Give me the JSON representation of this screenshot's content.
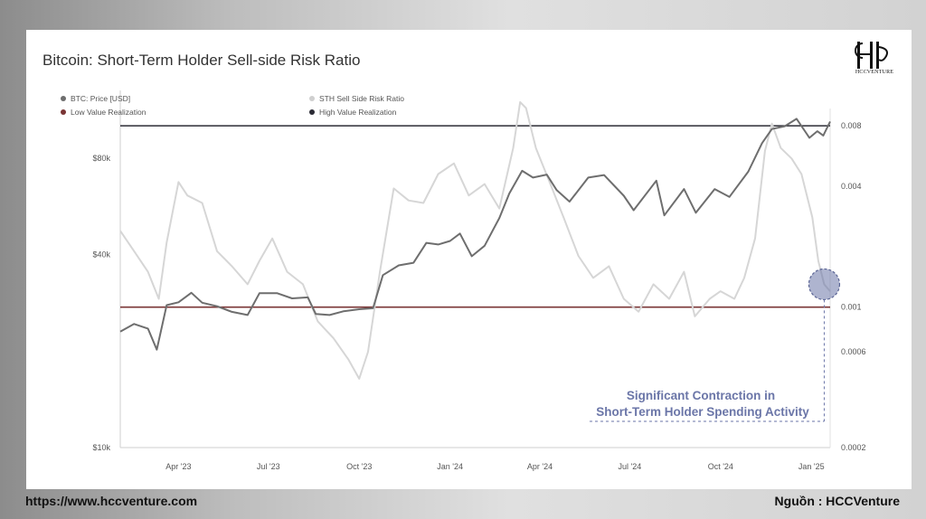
{
  "title": "Bitcoin: Short-Term Holder Sell-side Risk Ratio",
  "logo": {
    "text": "HCCVENTURE",
    "icon": "hcc-monogram-logo"
  },
  "footer": {
    "url": "https://www.hccventure.com",
    "source": "Nguồn : HCCVenture"
  },
  "colors": {
    "price": "#6e6e6e",
    "ratio": "#d6d6d6",
    "low_line": "#7a3535",
    "high_line": "#2b2b35",
    "annotation": "#6b76a8"
  },
  "chart_data": {
    "type": "line",
    "legend": [
      {
        "label": "BTC: Price [USD]",
        "color": "#6e6e6e"
      },
      {
        "label": "STH Sell Side Risk Ratio",
        "color": "#cfcfcf"
      },
      {
        "label": "Low Value Realization",
        "color": "#7a3535"
      },
      {
        "label": "High Value Realization",
        "color": "#2b2b35"
      }
    ],
    "x_ticks": [
      "Apr '23",
      "Jul '23",
      "Oct '23",
      "Jan '24",
      "Apr '24",
      "Jul '24",
      "Oct '24",
      "Jan '25"
    ],
    "x_range": [
      "2023-02-01",
      "2025-01-20"
    ],
    "y_left": {
      "scale": "log",
      "range": [
        10000,
        130000
      ],
      "ticks": [
        {
          "value": 10000,
          "label": "$10k"
        },
        {
          "value": 40000,
          "label": "$40k"
        },
        {
          "value": 80000,
          "label": "$80k"
        }
      ]
    },
    "y_right": {
      "scale": "log",
      "range": [
        0.0002,
        0.012
      ],
      "ticks": [
        {
          "value": 0.0002,
          "label": "0.0002"
        },
        {
          "value": 0.0006,
          "label": "0.0006"
        },
        {
          "value": 0.001,
          "label": "0.001"
        },
        {
          "value": 0.004,
          "label": "0.004"
        },
        {
          "value": 0.008,
          "label": "0.008"
        }
      ]
    },
    "low_value_realization": 0.001,
    "high_value_realization": 0.008,
    "series": [
      {
        "name": "BTC: Price [USD]",
        "axis": "left",
        "points": [
          [
            "2023-02-01",
            23000
          ],
          [
            "2023-02-15",
            24300
          ],
          [
            "2023-03-01",
            23500
          ],
          [
            "2023-03-10",
            20200
          ],
          [
            "2023-03-20",
            27800
          ],
          [
            "2023-04-01",
            28400
          ],
          [
            "2023-04-14",
            30400
          ],
          [
            "2023-04-25",
            28300
          ],
          [
            "2023-05-10",
            27600
          ],
          [
            "2023-05-25",
            26500
          ],
          [
            "2023-06-10",
            25900
          ],
          [
            "2023-06-22",
            30300
          ],
          [
            "2023-07-10",
            30300
          ],
          [
            "2023-07-25",
            29200
          ],
          [
            "2023-08-10",
            29400
          ],
          [
            "2023-08-18",
            26100
          ],
          [
            "2023-09-01",
            25900
          ],
          [
            "2023-09-15",
            26600
          ],
          [
            "2023-10-01",
            27000
          ],
          [
            "2023-10-15",
            27200
          ],
          [
            "2023-10-25",
            34500
          ],
          [
            "2023-11-10",
            37000
          ],
          [
            "2023-11-25",
            37700
          ],
          [
            "2023-12-08",
            43500
          ],
          [
            "2023-12-20",
            43000
          ],
          [
            "2024-01-01",
            44100
          ],
          [
            "2024-01-11",
            46500
          ],
          [
            "2024-01-23",
            39500
          ],
          [
            "2024-02-05",
            42600
          ],
          [
            "2024-02-20",
            52000
          ],
          [
            "2024-03-01",
            62000
          ],
          [
            "2024-03-14",
            73000
          ],
          [
            "2024-03-25",
            69500
          ],
          [
            "2024-04-08",
            71000
          ],
          [
            "2024-04-18",
            63500
          ],
          [
            "2024-05-01",
            58500
          ],
          [
            "2024-05-20",
            69500
          ],
          [
            "2024-06-05",
            70800
          ],
          [
            "2024-06-25",
            61000
          ],
          [
            "2024-07-05",
            55000
          ],
          [
            "2024-07-28",
            68000
          ],
          [
            "2024-08-05",
            53000
          ],
          [
            "2024-08-25",
            64000
          ],
          [
            "2024-09-06",
            54000
          ],
          [
            "2024-09-25",
            64000
          ],
          [
            "2024-10-10",
            60500
          ],
          [
            "2024-10-29",
            72500
          ],
          [
            "2024-11-12",
            89000
          ],
          [
            "2024-11-22",
            98500
          ],
          [
            "2024-12-05",
            100500
          ],
          [
            "2024-12-17",
            106000
          ],
          [
            "2024-12-30",
            92500
          ],
          [
            "2025-01-07",
            97000
          ],
          [
            "2025-01-13",
            94000
          ],
          [
            "2025-01-20",
            104000
          ]
        ]
      },
      {
        "name": "STH Sell Side Risk Ratio",
        "axis": "right",
        "points": [
          [
            "2023-02-01",
            0.0024
          ],
          [
            "2023-02-15",
            0.0019
          ],
          [
            "2023-03-01",
            0.0015
          ],
          [
            "2023-03-12",
            0.0011
          ],
          [
            "2023-03-20",
            0.0021
          ],
          [
            "2023-04-01",
            0.0042
          ],
          [
            "2023-04-10",
            0.0036
          ],
          [
            "2023-04-25",
            0.0033
          ],
          [
            "2023-05-10",
            0.0019
          ],
          [
            "2023-05-25",
            0.0016
          ],
          [
            "2023-06-10",
            0.0013
          ],
          [
            "2023-06-22",
            0.0017
          ],
          [
            "2023-07-05",
            0.0022
          ],
          [
            "2023-07-20",
            0.0015
          ],
          [
            "2023-08-05",
            0.0013
          ],
          [
            "2023-08-20",
            0.00085
          ],
          [
            "2023-09-05",
            0.0007
          ],
          [
            "2023-09-20",
            0.00055
          ],
          [
            "2023-10-01",
            0.00044
          ],
          [
            "2023-10-10",
            0.0006
          ],
          [
            "2023-10-22",
            0.0015
          ],
          [
            "2023-11-05",
            0.0039
          ],
          [
            "2023-11-20",
            0.0034
          ],
          [
            "2023-12-05",
            0.0033
          ],
          [
            "2023-12-20",
            0.0046
          ],
          [
            "2024-01-05",
            0.0052
          ],
          [
            "2024-01-20",
            0.0036
          ],
          [
            "2024-02-05",
            0.0041
          ],
          [
            "2024-02-20",
            0.0031
          ],
          [
            "2024-03-05",
            0.0062
          ],
          [
            "2024-03-12",
            0.0105
          ],
          [
            "2024-03-18",
            0.0098
          ],
          [
            "2024-03-28",
            0.0062
          ],
          [
            "2024-04-10",
            0.0043
          ],
          [
            "2024-04-25",
            0.0028
          ],
          [
            "2024-05-10",
            0.0018
          ],
          [
            "2024-05-25",
            0.0014
          ],
          [
            "2024-06-10",
            0.0016
          ],
          [
            "2024-06-25",
            0.0011
          ],
          [
            "2024-07-10",
            0.00095
          ],
          [
            "2024-07-25",
            0.0013
          ],
          [
            "2024-08-10",
            0.0011
          ],
          [
            "2024-08-25",
            0.0015
          ],
          [
            "2024-09-05",
            0.0009
          ],
          [
            "2024-09-20",
            0.0011
          ],
          [
            "2024-10-01",
            0.0012
          ],
          [
            "2024-10-15",
            0.0011
          ],
          [
            "2024-10-25",
            0.0014
          ],
          [
            "2024-11-05",
            0.0022
          ],
          [
            "2024-11-15",
            0.006
          ],
          [
            "2024-11-22",
            0.0082
          ],
          [
            "2024-12-01",
            0.0062
          ],
          [
            "2024-12-12",
            0.0055
          ],
          [
            "2024-12-22",
            0.0046
          ],
          [
            "2025-01-02",
            0.0028
          ],
          [
            "2025-01-08",
            0.0017
          ],
          [
            "2025-01-14",
            0.0013
          ],
          [
            "2025-01-20",
            0.0012
          ]
        ]
      }
    ],
    "annotation": {
      "lines": [
        "Significant Contraction in",
        "Short-Term Holder Spending Activity"
      ],
      "highlight_date": "2025-01-14",
      "highlight_value": 0.0013
    }
  }
}
